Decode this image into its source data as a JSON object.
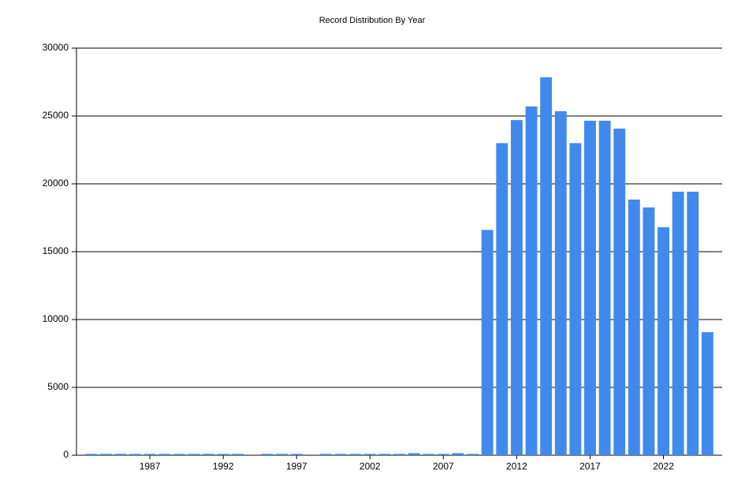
{
  "chart_data": {
    "type": "bar",
    "title": "Record Distribution By Year",
    "x": [
      1983,
      1984,
      1985,
      1986,
      1987,
      1988,
      1989,
      1990,
      1991,
      1992,
      1993,
      1995,
      1996,
      1997,
      1999,
      2000,
      2001,
      2002,
      2003,
      2004,
      2005,
      2006,
      2007,
      2008,
      2009,
      2010,
      2011,
      2012,
      2013,
      2014,
      2015,
      2016,
      2017,
      2018,
      2019,
      2020,
      2021,
      2022,
      2023,
      2024,
      2025
    ],
    "values": [
      100,
      100,
      100,
      100,
      100,
      100,
      100,
      100,
      100,
      100,
      100,
      100,
      100,
      100,
      100,
      100,
      100,
      100,
      100,
      100,
      150,
      100,
      100,
      150,
      100,
      16600,
      23000,
      24700,
      25700,
      27850,
      25350,
      23000,
      24650,
      24650,
      24070,
      18840,
      18260,
      16800,
      19420,
      19420,
      9070
    ],
    "color": "#4189ec",
    "xlim": [
      1982,
      2026
    ],
    "xticks": [
      1987,
      1992,
      1997,
      2002,
      2007,
      2012,
      2017,
      2022
    ],
    "ylim": [
      0,
      30000
    ],
    "yticks": [
      0,
      5000,
      10000,
      15000,
      20000,
      25000,
      30000
    ],
    "grid": true
  }
}
